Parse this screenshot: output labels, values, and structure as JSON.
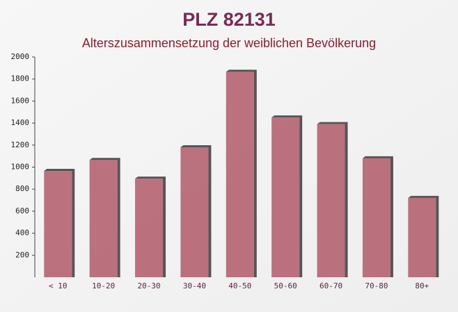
{
  "chart_data": {
    "type": "bar",
    "title": "PLZ 82131",
    "subtitle": "Alterszusammensetzung der weiblichen Bevölkerung",
    "categories": [
      "< 10",
      "10-20",
      "20-30",
      "30-40",
      "40-50",
      "50-60",
      "60-70",
      "70-80",
      "80+"
    ],
    "values": [
      965,
      1065,
      895,
      1180,
      1865,
      1450,
      1390,
      1080,
      720
    ],
    "color": "#b05a68",
    "ylim": [
      0,
      2000
    ],
    "yticks": [
      200,
      400,
      600,
      800,
      1000,
      1200,
      1400,
      1600,
      1800,
      2000
    ],
    "grid": false
  }
}
